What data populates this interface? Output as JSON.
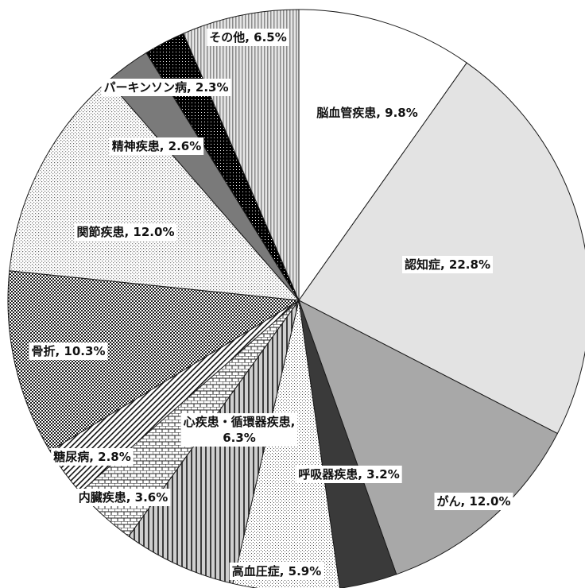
{
  "chart_data": {
    "type": "pie",
    "start": "12 o'clock",
    "direction": "clockwise",
    "slices": [
      {
        "label": "脳血管疾患",
        "value": 9.8,
        "label_text": "脳血管疾患, 9.8%",
        "fill": "white"
      },
      {
        "label": "認知症",
        "value": 22.8,
        "label_text": "認知症, 22.8%",
        "fill": "lightgray"
      },
      {
        "label": "がん",
        "value": 12.0,
        "label_text": "がん, 12.0%",
        "fill": "midgray"
      },
      {
        "label": "呼吸器疾患",
        "value": 3.2,
        "label_text": "呼吸器疾患, 3.2%",
        "fill": "darkgray"
      },
      {
        "label": "高血圧症",
        "value": 5.9,
        "label_text": "高血圧症, 5.9%",
        "fill": "finedots"
      },
      {
        "label": "心疾患・循環器疾患",
        "value": 6.3,
        "label_text": "心疾患・循環器疾患,\n6.3%",
        "fill": "vlines"
      },
      {
        "label": "内臓疾患",
        "value": 3.6,
        "label_text": "内臓疾患, 3.6%",
        "fill": "brick"
      },
      {
        "label": "糖尿病",
        "value": 2.8,
        "label_text": "糖尿病, 2.8%",
        "fill": "diag"
      },
      {
        "label": "骨折",
        "value": 10.3,
        "label_text": "骨折, 10.3%",
        "fill": "checker"
      },
      {
        "label": "関節疾患",
        "value": 12.0,
        "label_text": "関節疾患, 12.0%",
        "fill": "sparsedots"
      },
      {
        "label": "精神疾患",
        "value": 2.6,
        "label_text": "精神疾患, 2.6%",
        "fill": "gray"
      },
      {
        "label": "パーキンソン病",
        "value": 2.3,
        "label_text": "パーキンソン病, 2.3%",
        "fill": "blackdots"
      },
      {
        "label": "その他",
        "value": 6.5,
        "label_text": "その他, 6.5%",
        "fill": "vstripes"
      }
    ]
  }
}
